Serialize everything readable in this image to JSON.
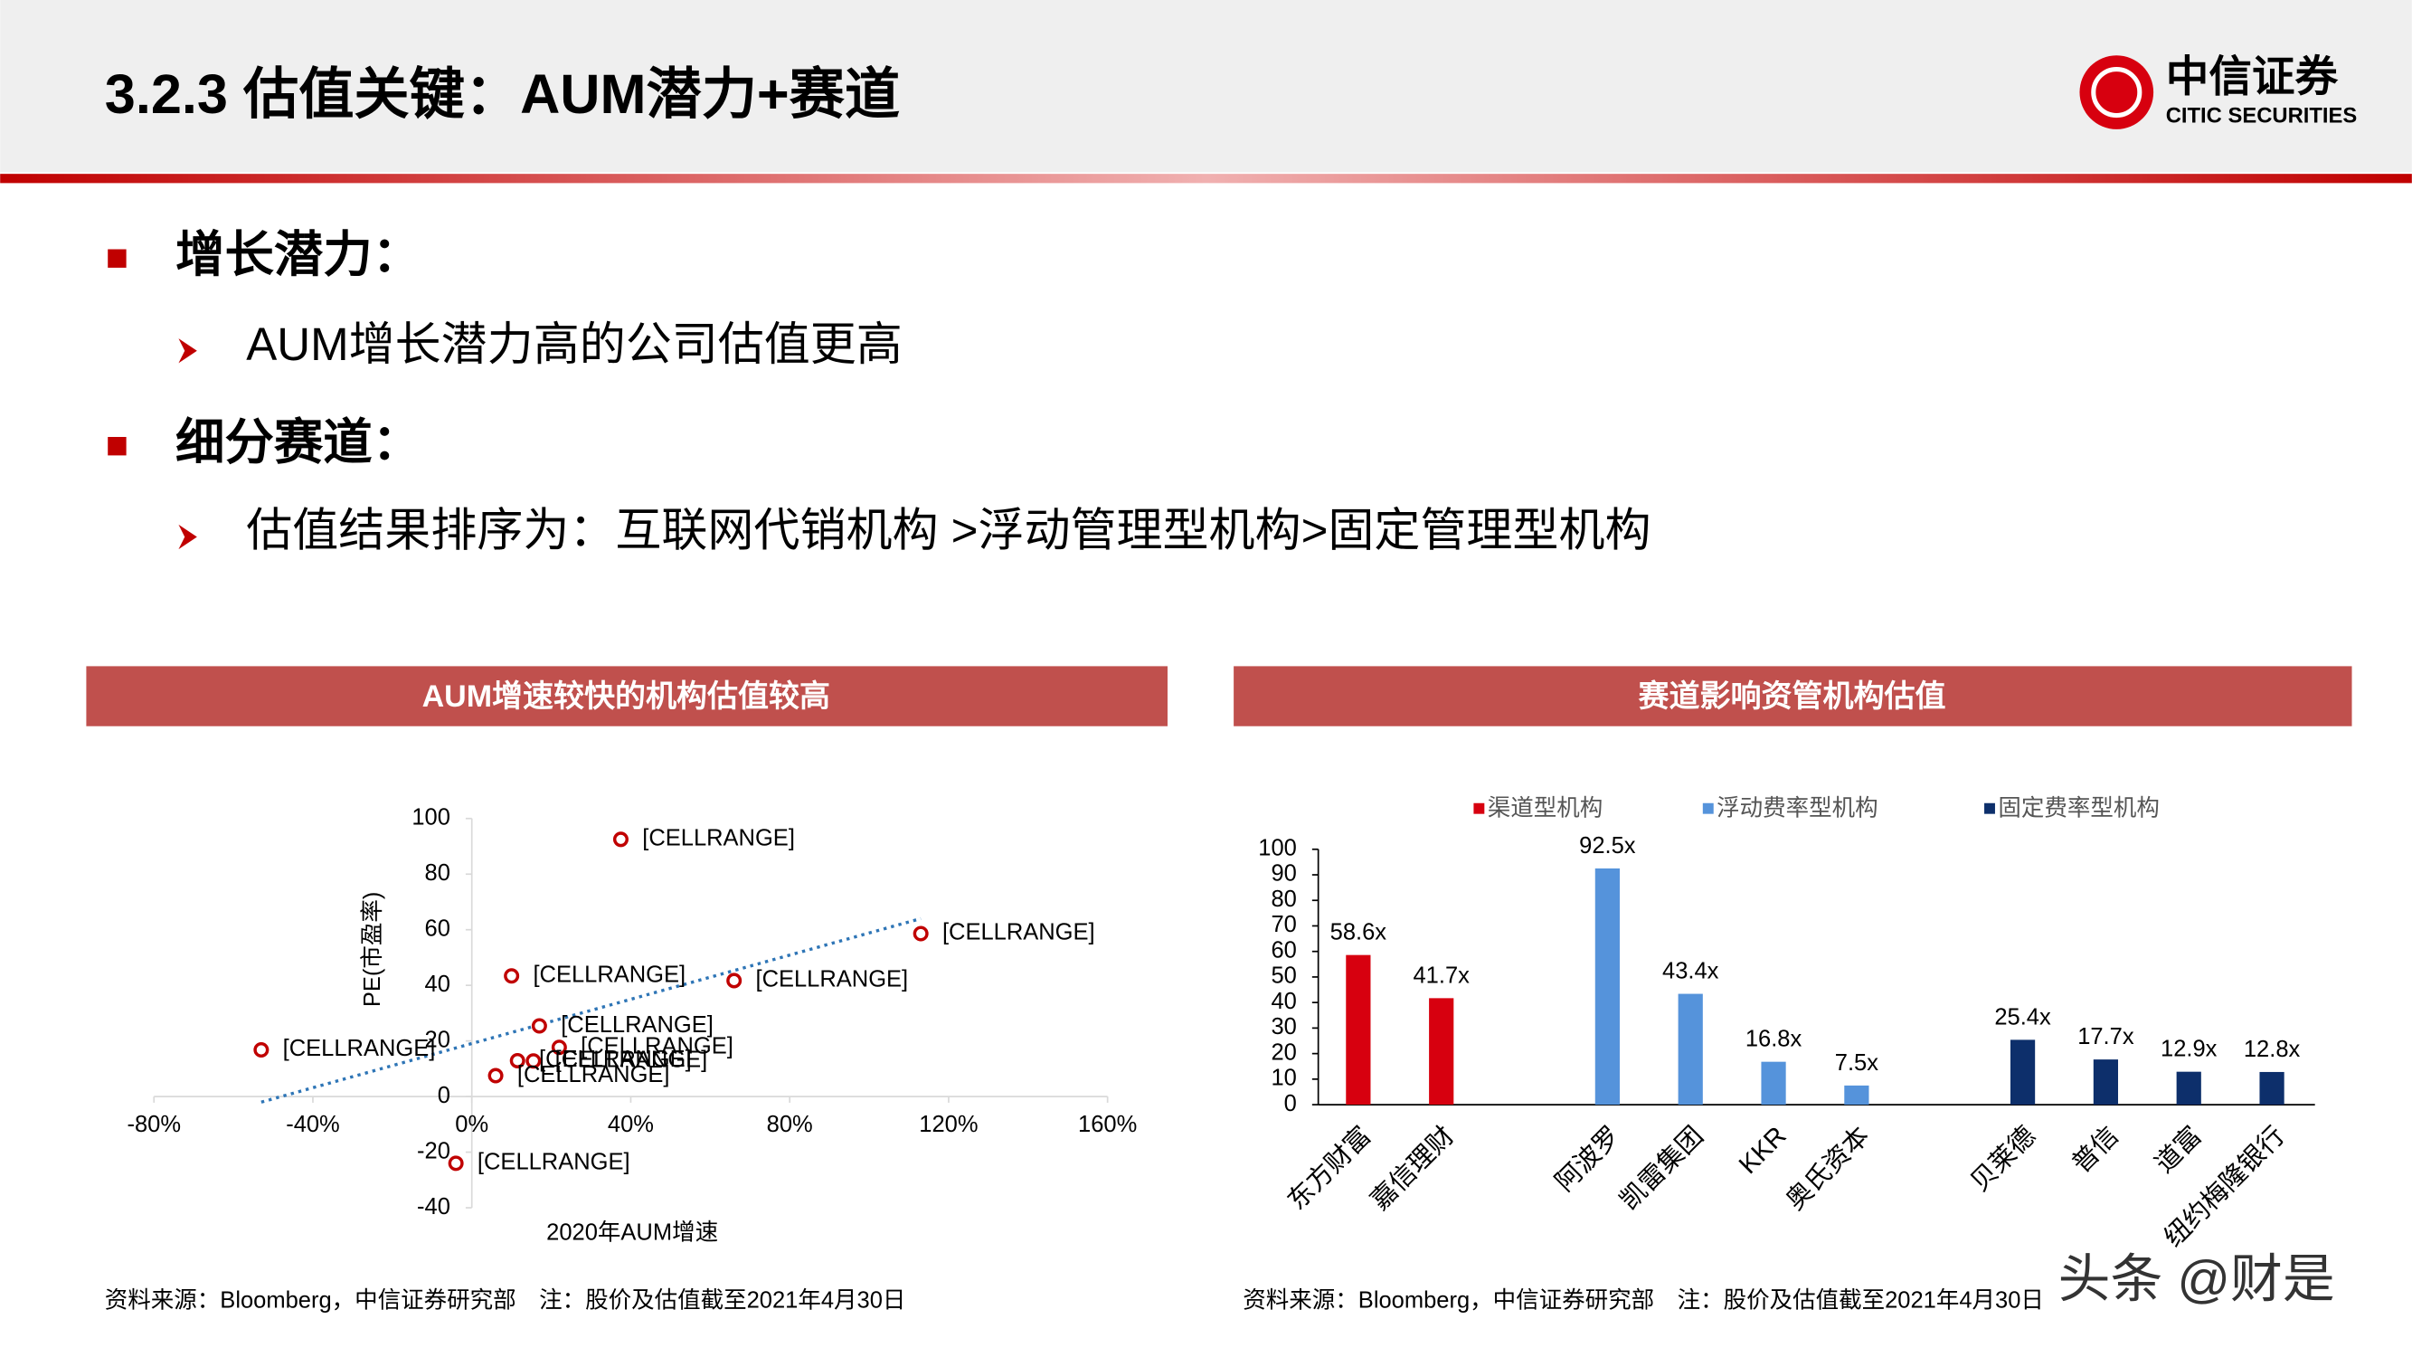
{
  "header": {
    "title": "3.2.3 估值关键：AUM潜力+赛道",
    "logo_cn": "中信证券",
    "logo_en": "CITIC SECURITIES"
  },
  "bullets": [
    {
      "text": "增长潜力：",
      "sub": "AUM增长潜力高的公司估值更高"
    },
    {
      "text": "细分赛道：",
      "sub": "估值结果排序为：互联网代销机构 >浮动管理型机构>固定管理型机构"
    }
  ],
  "chart_data": [
    {
      "type": "scatter",
      "title": "AUM增速较快的机构估值较高",
      "x_label": "2020年AUM增速",
      "y_label": "PE(市盈率)",
      "x": [
        37.5,
        113,
        10,
        66,
        -53,
        17,
        22,
        11.5,
        15.5,
        6,
        -4
      ],
      "values": [
        92.5,
        58.6,
        43.4,
        41.7,
        16.8,
        25.4,
        17.7,
        12.9,
        12.8,
        7.5,
        -24
      ],
      "point_labels": [
        "[CELLRANGE]",
        "[CELLRANGE]",
        "[CELLRANGE]",
        "[CELLRANGE]",
        "[CELLRANGE]",
        "[CELLRANGE]",
        "[CELLRANGE]",
        "[CELLRANGE]",
        "[CELLRANGE]",
        "[CELLRANGE]",
        "[CELLRANGE]"
      ],
      "color": "#c00000",
      "trendline": {
        "x": [
          -53,
          113
        ],
        "values": [
          -2,
          64
        ]
      },
      "xlim": [
        -80,
        160
      ],
      "xticks": [
        {
          "value": -80,
          "label": "-80%"
        },
        {
          "value": -40,
          "label": "-40%"
        },
        {
          "value": 0,
          "label": "0%"
        },
        {
          "value": 40,
          "label": "40%"
        },
        {
          "value": 80,
          "label": "80%"
        },
        {
          "value": 120,
          "label": "120%"
        },
        {
          "value": 160,
          "label": "160%"
        }
      ],
      "ylim": [
        -40,
        100
      ],
      "yticks": [
        -40,
        -20,
        0,
        20,
        40,
        60,
        80,
        100
      ]
    },
    {
      "type": "bar",
      "title": "赛道影响资管机构估值",
      "categories": [
        "东方财富",
        "嘉信理财",
        null,
        "阿波罗",
        "凯雷集团",
        "KKR",
        "奥氏资本",
        null,
        "贝莱德",
        "普信",
        "道富",
        "纽约梅隆银行"
      ],
      "series": [
        {
          "name": "渠道型机构",
          "color": "#d7000f",
          "values": [
            58.6,
            41.7,
            null,
            null,
            null,
            null,
            null,
            null,
            null,
            null,
            null,
            null
          ],
          "value_labels": [
            "58.6x",
            "41.7x",
            null,
            null,
            null,
            null,
            null,
            null,
            null,
            null,
            null,
            null
          ]
        },
        {
          "name": "浮动费率型机构",
          "color": "#5593db",
          "values": [
            null,
            null,
            null,
            92.5,
            43.4,
            16.8,
            7.5,
            null,
            null,
            null,
            null,
            null
          ],
          "value_labels": [
            null,
            null,
            null,
            "92.5x",
            "43.4x",
            "16.8x",
            "7.5x",
            null,
            null,
            null,
            null,
            null
          ]
        },
        {
          "name": "固定费率型机构",
          "color": "#0d2f6b",
          "values": [
            null,
            null,
            null,
            null,
            null,
            null,
            null,
            null,
            25.4,
            17.7,
            12.9,
            12.8
          ],
          "value_labels": [
            null,
            null,
            null,
            null,
            null,
            null,
            null,
            null,
            "25.4x",
            "17.7x",
            "12.9x",
            "12.8x"
          ]
        }
      ],
      "ylim": [
        0,
        100
      ],
      "yticks": [
        0,
        10,
        20,
        30,
        40,
        50,
        60,
        70,
        80,
        90,
        100
      ]
    }
  ],
  "footer": {
    "left": "资料来源：Bloomberg，中信证券研究部　注：股价及估值截至2021年4月30日",
    "right": "资料来源：Bloomberg，中信证券研究部　注：股价及估值截至2021年4月30日"
  },
  "watermark": "头条 @财是"
}
